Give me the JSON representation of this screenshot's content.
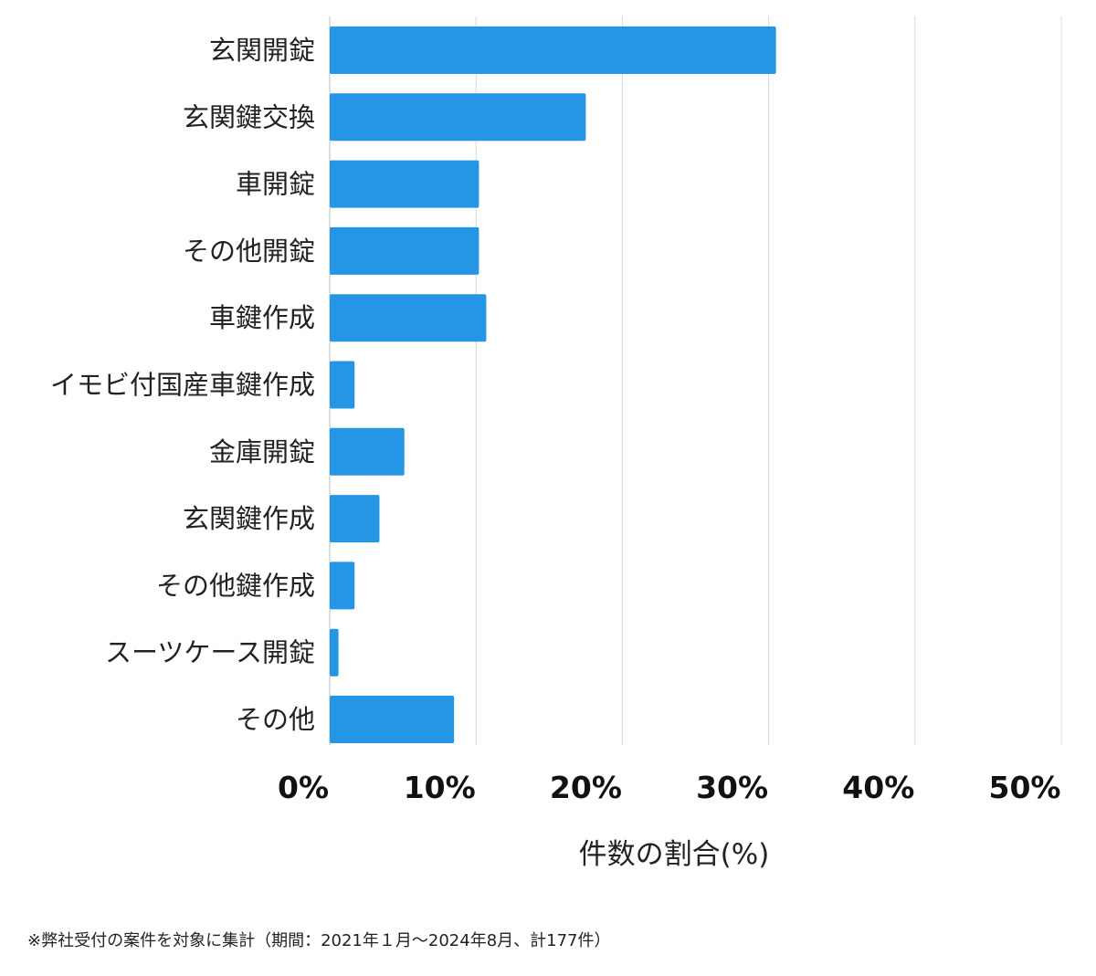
{
  "chart_data": {
    "type": "bar",
    "orientation": "horizontal",
    "categories": [
      "玄関開錠",
      "玄関鍵交換",
      "車開錠",
      "その他開錠",
      "車鍵作成",
      "イモビ付国産車鍵作成",
      "金庫開錠",
      "玄関鍵作成",
      "その他鍵作成",
      "スーツケース開錠",
      "その他"
    ],
    "values": [
      30.5,
      17.5,
      10.2,
      10.2,
      10.7,
      1.7,
      5.1,
      3.4,
      1.7,
      0.6,
      8.5
    ],
    "xlabel": "件数の割合(%)",
    "ylabel": "",
    "xlim": [
      0,
      50
    ],
    "xticks": [
      "0%",
      "10%",
      "20%",
      "30%",
      "40%",
      "50%"
    ],
    "grid": "vertical",
    "bar_color": "#2596e6"
  },
  "footnote": "※弊社受付の案件を対象に集計（期間：2021年１月〜2024年8月、計177件）"
}
